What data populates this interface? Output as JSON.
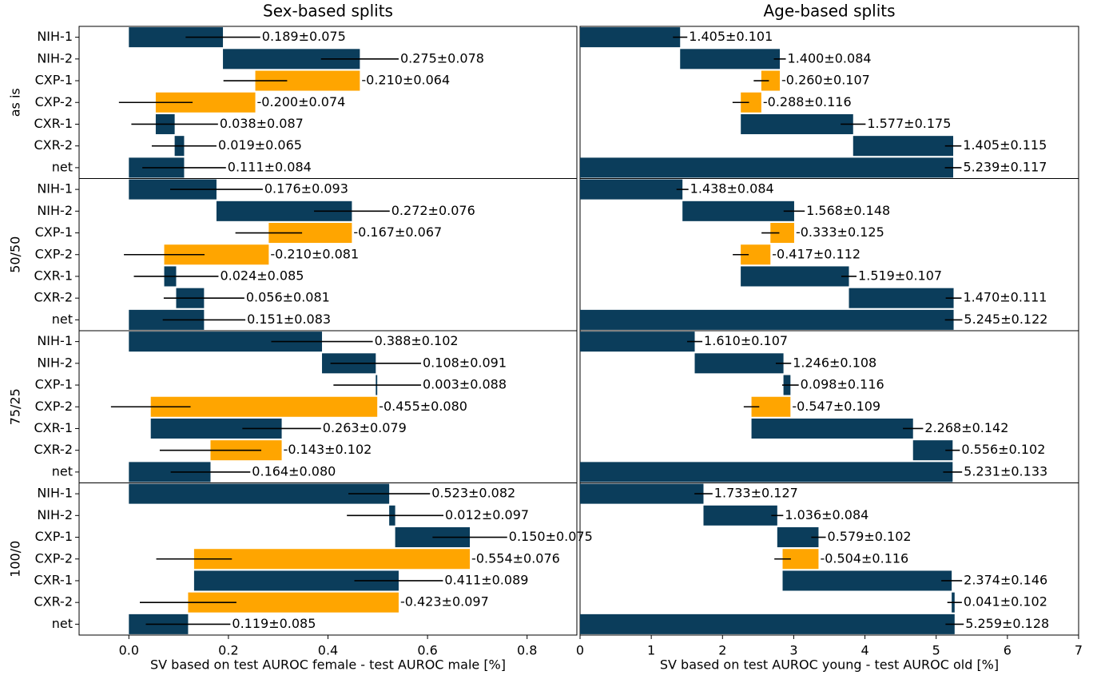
{
  "chart_data": [
    {
      "type": "waterfall",
      "title": "Sex-based splits",
      "xlabel": "SV based on test AUROC female - test AUROC male [%]",
      "xlim": [
        -0.1,
        0.9
      ],
      "xticks": [
        {
          "value": 0,
          "label": "0.0"
        },
        {
          "value": 0.2,
          "label": "0.2"
        },
        {
          "value": 0.4,
          "label": "0.4"
        },
        {
          "value": 0.6,
          "label": "0.6"
        },
        {
          "value": 0.8,
          "label": "0.8"
        }
      ],
      "colors": {
        "positive": "#0b3d5b",
        "negative": "#ffa500"
      },
      "last_is_total": true,
      "panels": [
        {
          "name": "as is",
          "categories": [
            "NIH-1",
            "NIH-2",
            "CXP-1",
            "CXP-2",
            "CXR-1",
            "CXR-2",
            "net"
          ],
          "values": [
            0.189,
            0.275,
            -0.21,
            -0.2,
            0.038,
            0.019,
            0.111
          ],
          "errors": [
            0.075,
            0.078,
            0.064,
            0.074,
            0.087,
            0.065,
            0.084
          ],
          "value_labels": [
            "0.189±0.075",
            "0.275±0.078",
            "-0.210±0.064",
            "-0.200±0.074",
            "0.038±0.087",
            "0.019±0.065",
            "0.111±0.084"
          ]
        },
        {
          "name": "50/50",
          "categories": [
            "NIH-1",
            "NIH-2",
            "CXP-1",
            "CXP-2",
            "CXR-1",
            "CXR-2",
            "net"
          ],
          "values": [
            0.176,
            0.272,
            -0.167,
            -0.21,
            0.024,
            0.056,
            0.151
          ],
          "errors": [
            0.093,
            0.076,
            0.067,
            0.081,
            0.085,
            0.081,
            0.083
          ],
          "value_labels": [
            "0.176±0.093",
            "0.272±0.076",
            "-0.167±0.067",
            "-0.210±0.081",
            "0.024±0.085",
            "0.056±0.081",
            "0.151±0.083"
          ]
        },
        {
          "name": "75/25",
          "categories": [
            "NIH-1",
            "NIH-2",
            "CXP-1",
            "CXP-2",
            "CXR-1",
            "CXR-2",
            "net"
          ],
          "values": [
            0.388,
            0.108,
            0.003,
            -0.455,
            0.263,
            -0.143,
            0.164
          ],
          "errors": [
            0.102,
            0.091,
            0.088,
            0.08,
            0.079,
            0.102,
            0.08
          ],
          "value_labels": [
            "0.388±0.102",
            "0.108±0.091",
            "0.003±0.088",
            "-0.455±0.080",
            "0.263±0.079",
            "-0.143±0.102",
            "0.164±0.080"
          ]
        },
        {
          "name": "100/0",
          "categories": [
            "NIH-1",
            "NIH-2",
            "CXP-1",
            "CXP-2",
            "CXR-1",
            "CXR-2",
            "net"
          ],
          "values": [
            0.523,
            0.012,
            0.15,
            -0.554,
            0.411,
            -0.423,
            0.119
          ],
          "errors": [
            0.082,
            0.097,
            0.075,
            0.076,
            0.089,
            0.097,
            0.085
          ],
          "value_labels": [
            "0.523±0.082",
            "0.012±0.097",
            "0.150±0.075",
            "-0.554±0.076",
            "0.411±0.089",
            "-0.423±0.097",
            "0.119±0.085"
          ]
        }
      ]
    },
    {
      "type": "waterfall",
      "title": "Age-based splits",
      "xlabel": "SV based on test AUROC young - test AUROC old [%]",
      "xlim": [
        0,
        7
      ],
      "xticks": [
        0,
        1,
        2,
        3,
        4,
        5,
        6,
        7
      ],
      "colors": {
        "positive": "#0b3d5b",
        "negative": "#ffa500"
      },
      "last_is_total": true,
      "panels": [
        {
          "values": [
            1.405,
            1.4,
            -0.26,
            -0.288,
            1.577,
            1.405,
            5.239
          ],
          "errors": [
            0.101,
            0.084,
            0.107,
            0.116,
            0.175,
            0.115,
            0.117
          ],
          "value_labels": [
            "1.405±0.101",
            "1.400±0.084",
            "-0.260±0.107",
            "-0.288±0.116",
            "1.577±0.175",
            "1.405±0.115",
            "5.239±0.117"
          ]
        },
        {
          "values": [
            1.438,
            1.568,
            -0.333,
            -0.417,
            1.519,
            1.47,
            5.245
          ],
          "errors": [
            0.084,
            0.148,
            0.125,
            0.112,
            0.107,
            0.111,
            0.122
          ],
          "value_labels": [
            "1.438±0.084",
            "1.568±0.148",
            "-0.333±0.125",
            "-0.417±0.112",
            "1.519±0.107",
            "1.470±0.111",
            "5.245±0.122"
          ]
        },
        {
          "values": [
            1.61,
            1.246,
            0.098,
            -0.547,
            2.268,
            0.556,
            5.231
          ],
          "errors": [
            0.107,
            0.108,
            0.116,
            0.109,
            0.142,
            0.102,
            0.133
          ],
          "value_labels": [
            "1.610±0.107",
            "1.246±0.108",
            "0.098±0.116",
            "-0.547±0.109",
            "2.268±0.142",
            "0.556±0.102",
            "5.231±0.133"
          ]
        },
        {
          "values": [
            1.733,
            1.036,
            0.579,
            -0.504,
            2.374,
            0.041,
            5.259
          ],
          "errors": [
            0.127,
            0.084,
            0.102,
            0.116,
            0.146,
            0.102,
            0.128
          ],
          "value_labels": [
            "1.733±0.127",
            "1.036±0.084",
            "0.579±0.102",
            "-0.504±0.116",
            "2.374±0.146",
            "0.041±0.102",
            "5.259±0.128"
          ]
        }
      ]
    }
  ]
}
